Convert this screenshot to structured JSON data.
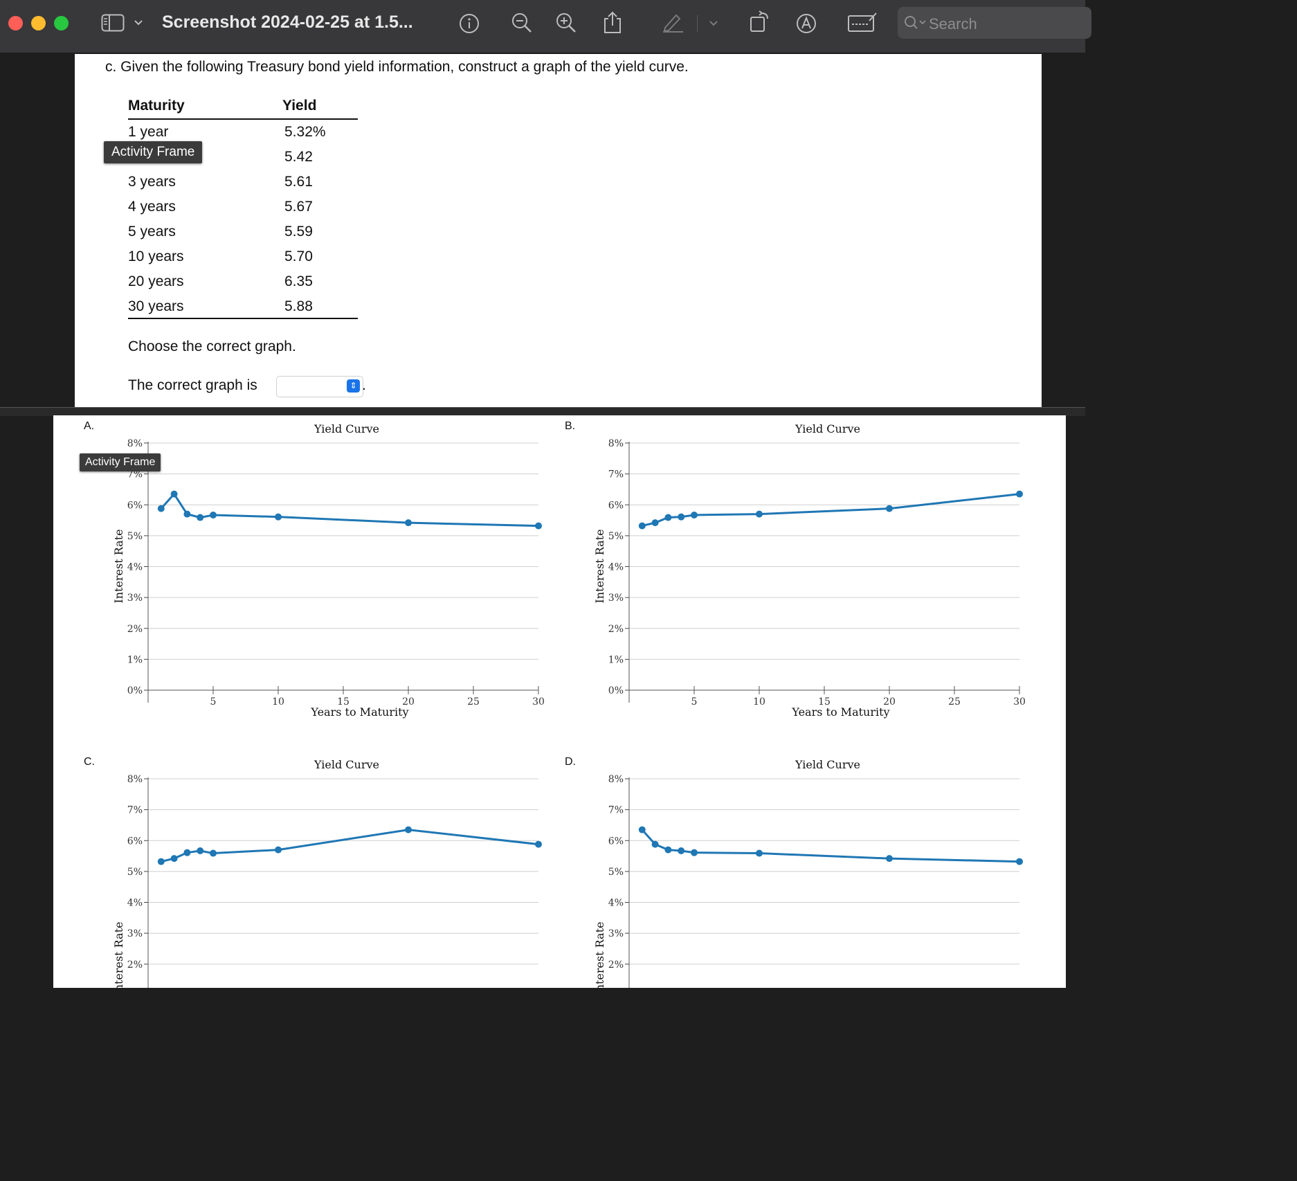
{
  "window": {
    "title": "Screenshot 2024-02-25 at 1.5...",
    "search_placeholder": "Search"
  },
  "colors": {
    "close": "#ff5f57",
    "minimize": "#febc2e",
    "zoom": "#28c840",
    "series": "#1f77b4",
    "select_accent": "#1a73e8"
  },
  "toolbar_icons": [
    "sidebar-icon",
    "chevron-down-icon",
    "info-icon",
    "zoom-out-icon",
    "zoom-in-icon",
    "share-icon",
    "highlight-pen-icon",
    "rotate-icon",
    "markup-icon",
    "signature-icon",
    "search-icon"
  ],
  "question": {
    "prompt": "c. Given the following Treasury bond yield information, construct a graph of the yield curve.",
    "headers": {
      "maturity": "Maturity",
      "yield": "Yield"
    },
    "rows": [
      {
        "maturity": "1 year",
        "yield": "5.32%"
      },
      {
        "maturity": "",
        "yield": "5.42"
      },
      {
        "maturity": "3 years",
        "yield": "5.61"
      },
      {
        "maturity": "4 years",
        "yield": "5.67"
      },
      {
        "maturity": "5 years",
        "yield": "5.59"
      },
      {
        "maturity": "10 years",
        "yield": "5.70"
      },
      {
        "maturity": "20 years",
        "yield": "6.35"
      },
      {
        "maturity": "30 years",
        "yield": "5.88"
      }
    ],
    "choose_text": "Choose the correct graph.",
    "answer_prefix": "The correct graph is",
    "answer_suffix": ".",
    "selected_value": ""
  },
  "tooltip_text": "Activity Frame",
  "chart_data": [
    {
      "option_label": "A.",
      "type": "line",
      "title": "Yield Curve",
      "xlabel": "Years to Maturity",
      "ylabel": "Interest Rate",
      "x_ticks": [
        5,
        10,
        15,
        20,
        25,
        30
      ],
      "y_ticks": [
        "0%",
        "1%",
        "2%",
        "3%",
        "4%",
        "5%",
        "6%",
        "7%",
        "8%"
      ],
      "ylim": [
        0,
        8
      ],
      "xlim": [
        0,
        30
      ],
      "grid": true,
      "series": [
        {
          "x": [
            1,
            2,
            3,
            4,
            5,
            10,
            20,
            30
          ],
          "y": [
            5.88,
            6.35,
            5.7,
            5.59,
            5.67,
            5.61,
            5.42,
            5.32
          ]
        }
      ]
    },
    {
      "option_label": "B.",
      "type": "line",
      "title": "Yield Curve",
      "xlabel": "Years to Maturity",
      "ylabel": "Interest Rate",
      "x_ticks": [
        5,
        10,
        15,
        20,
        25,
        30
      ],
      "y_ticks": [
        "0%",
        "1%",
        "2%",
        "3%",
        "4%",
        "5%",
        "6%",
        "7%",
        "8%"
      ],
      "ylim": [
        0,
        8
      ],
      "xlim": [
        0,
        30
      ],
      "grid": true,
      "series": [
        {
          "x": [
            1,
            2,
            3,
            4,
            5,
            10,
            20,
            30
          ],
          "y": [
            5.32,
            5.42,
            5.59,
            5.61,
            5.67,
            5.7,
            5.88,
            6.35
          ]
        }
      ]
    },
    {
      "option_label": "C.",
      "type": "line",
      "title": "Yield Curve",
      "xlabel": "",
      "ylabel": "Interest Rate",
      "x_ticks": [],
      "y_ticks": [
        "2%",
        "3%",
        "4%",
        "5%",
        "6%",
        "7%",
        "8%"
      ],
      "ylim": [
        0,
        8
      ],
      "xlim": [
        0,
        30
      ],
      "grid": true,
      "series": [
        {
          "x": [
            1,
            2,
            3,
            4,
            5,
            10,
            20,
            30
          ],
          "y": [
            5.32,
            5.42,
            5.61,
            5.67,
            5.59,
            5.7,
            6.35,
            5.88
          ]
        }
      ]
    },
    {
      "option_label": "D.",
      "type": "line",
      "title": "Yield Curve",
      "xlabel": "",
      "ylabel": "Interest Rate",
      "x_ticks": [],
      "y_ticks": [
        "2%",
        "3%",
        "4%",
        "5%",
        "6%",
        "7%",
        "8%"
      ],
      "ylim": [
        0,
        8
      ],
      "xlim": [
        0,
        30
      ],
      "grid": true,
      "series": [
        {
          "x": [
            1,
            2,
            3,
            4,
            5,
            10,
            20,
            30
          ],
          "y": [
            6.35,
            5.88,
            5.7,
            5.67,
            5.61,
            5.59,
            5.42,
            5.32
          ]
        }
      ]
    }
  ]
}
